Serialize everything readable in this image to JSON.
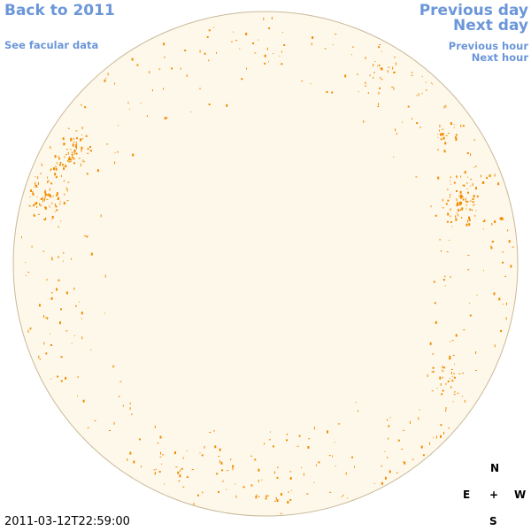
{
  "nav": {
    "back_year": "Back to 2011",
    "see_facular": "See facular data",
    "prev_day": "Previous day",
    "next_day": "Next day",
    "prev_hour": "Previous hour",
    "next_hour": "Next hour"
  },
  "compass": {
    "north": "N",
    "south": "S",
    "east": "E",
    "west": "W",
    "center": "+"
  },
  "timestamp": "2011-03-12T22:59:00",
  "colors": {
    "disk_fill": "#fef8ea",
    "disk_edge": "#c9b99a",
    "facula": "#f08c00",
    "link": "#6b96d8"
  }
}
